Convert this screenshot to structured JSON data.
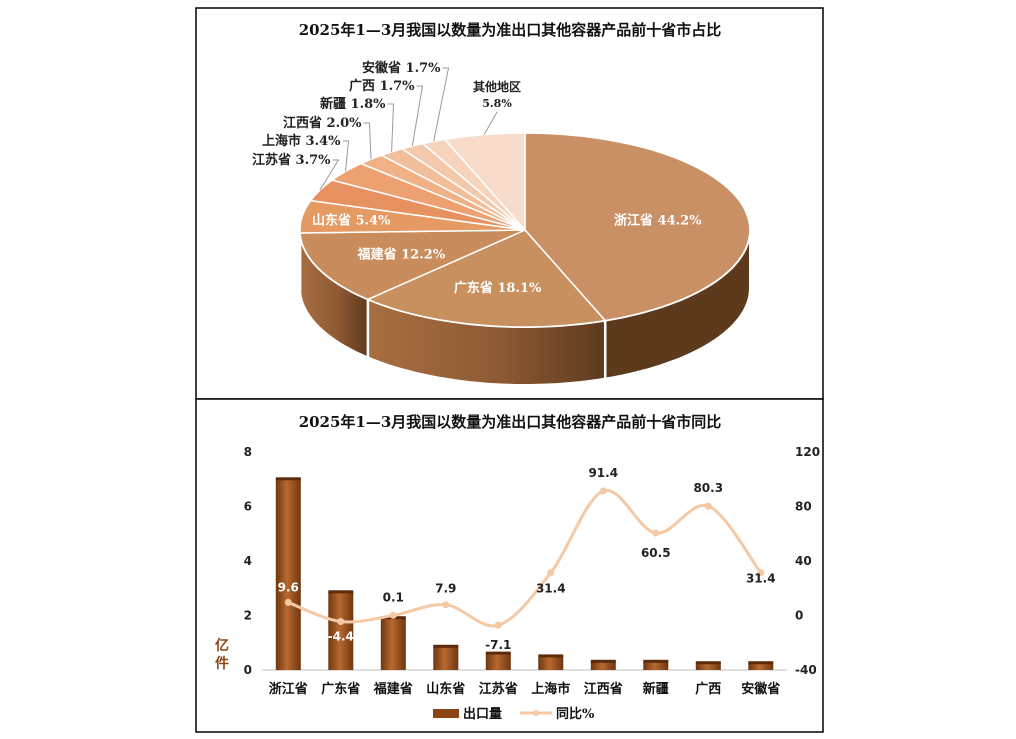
{
  "colors": {
    "bar": "#8B4513",
    "bar_light": "#C06A2E",
    "line": "#F5C9A5",
    "pie_main": "#CC9566",
    "pie_side": "#7A4A26"
  },
  "chart_data": [
    {
      "type": "pie",
      "title": "2025年1—3月我国以数量为准出口其他容器产品前十省市占比",
      "slices": [
        {
          "name": "浙江省",
          "value": 44.2,
          "label": "浙江省 44.2%",
          "color": "#C99065"
        },
        {
          "name": "广东省",
          "value": 18.1,
          "label": "广东省 18.1%",
          "color": "#C9905F"
        },
        {
          "name": "福建省",
          "value": 12.2,
          "label": "福建省 12.2%",
          "color": "#C98C5C"
        },
        {
          "name": "山东省",
          "value": 5.4,
          "label": "山东省 5.4%",
          "color": "#E49A62"
        },
        {
          "name": "江苏省",
          "value": 3.7,
          "label": "江苏省 3.7%",
          "color": "#E79160"
        },
        {
          "name": "上海市",
          "value": 3.4,
          "label": "上海市 3.4%",
          "color": "#EDA171"
        },
        {
          "name": "江西省",
          "value": 2.0,
          "label": "江西省 2.0%",
          "color": "#F1B186"
        },
        {
          "name": "新疆",
          "value": 1.8,
          "label": "新疆 1.8%",
          "color": "#F3BE9A"
        },
        {
          "name": "广西",
          "value": 1.7,
          "label": "广西 1.7%",
          "color": "#F4C8AA"
        },
        {
          "name": "安徽省",
          "value": 1.7,
          "label": "安徽省 1.7%",
          "color": "#F6D3BB"
        },
        {
          "name": "其他地区",
          "value": 5.8,
          "label": "其他地区",
          "sublabel": "5.8%",
          "color": "#F7DCCB"
        }
      ]
    },
    {
      "type": "bar",
      "title": "2025年1—3月我国以数量为准出口其他容器产品前十省市同比",
      "categories": [
        "浙江省",
        "广东省",
        "福建省",
        "山东省",
        "江苏省",
        "上海市",
        "江西省",
        "新疆",
        "广西",
        "安徽省"
      ],
      "ylabel": "亿件",
      "ylim": [
        0,
        8
      ],
      "yticks": [
        0,
        2,
        4,
        6,
        8
      ],
      "y2lim": [
        -40,
        120
      ],
      "y2ticks": [
        -40,
        0,
        40,
        80,
        120
      ],
      "series": [
        {
          "name": "出口量",
          "type": "bar",
          "axis": "left",
          "values": [
            7.0,
            2.85,
            1.9,
            0.85,
            0.6,
            0.5,
            0.3,
            0.3,
            0.25,
            0.25
          ]
        },
        {
          "name": "同比%",
          "type": "line",
          "axis": "right",
          "values": [
            9.6,
            -4.4,
            0.1,
            7.9,
            -7.1,
            31.4,
            91.4,
            60.5,
            80.3,
            31.4
          ],
          "labels": [
            "9.6",
            "-4.4",
            "0.1",
            "7.9",
            "-7.1",
            "31.4",
            "91.4",
            "60.5",
            "80.3",
            "31.4"
          ]
        }
      ],
      "legend": "bottom",
      "grid": false
    }
  ]
}
